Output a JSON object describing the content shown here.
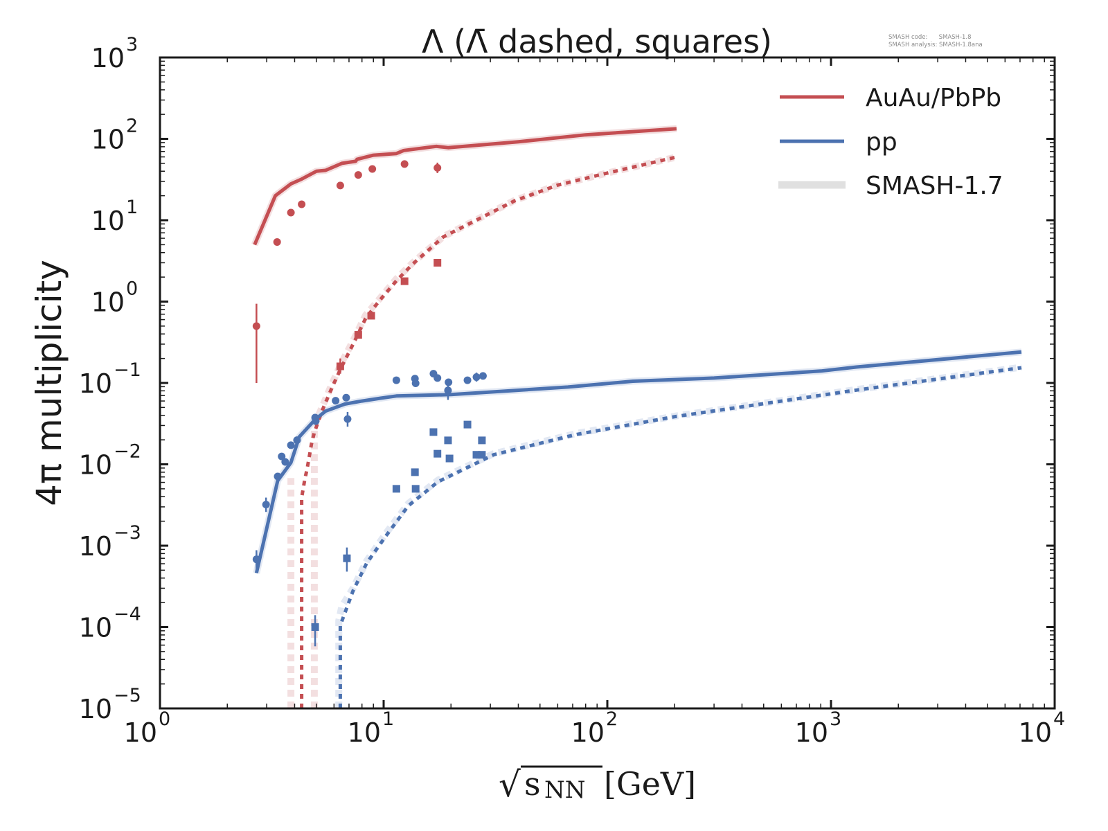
{
  "chart_data": {
    "type": "line",
    "title": "Λ (Λ̄ dashed, squares)",
    "meta_lines": [
      "SMASH code:      SMASH-1.8",
      "SMASH analysis: SMASH-1.8ana"
    ],
    "xlabel": "√sNN [GeV]",
    "xlabel_parts": {
      "sqrt": "√",
      "s": "s",
      "sub": "NN",
      "unit": "[GeV]"
    },
    "ylabel": "4π multiplicity",
    "xscale": "log",
    "yscale": "log",
    "xlim": [
      1,
      10000
    ],
    "ylim": [
      1e-05,
      1000
    ],
    "x_ticks": [
      {
        "base": "10",
        "exp": "0",
        "value": 1
      },
      {
        "base": "10",
        "exp": "1",
        "value": 10
      },
      {
        "base": "10",
        "exp": "2",
        "value": 100
      },
      {
        "base": "10",
        "exp": "3",
        "value": 1000
      },
      {
        "base": "10",
        "exp": "4",
        "value": 10000
      }
    ],
    "y_ticks": [
      {
        "base": "10",
        "exp": "3",
        "value": 1000
      },
      {
        "base": "10",
        "exp": "2",
        "value": 100
      },
      {
        "base": "10",
        "exp": "1",
        "value": 10
      },
      {
        "base": "10",
        "exp": "0",
        "value": 1
      },
      {
        "base": "10",
        "exp": "−1",
        "value": 0.1
      },
      {
        "base": "10",
        "exp": "−2",
        "value": 0.01
      },
      {
        "base": "10",
        "exp": "−3",
        "value": 0.001
      },
      {
        "base": "10",
        "exp": "−4",
        "value": 0.0001
      },
      {
        "base": "10",
        "exp": "−5",
        "value": 1e-05
      }
    ],
    "grid": false,
    "legend": {
      "placement": "top-right",
      "entries": [
        {
          "label": "AuAu/PbPb",
          "color": "#c44e52",
          "style": "solid"
        },
        {
          "label": "pp",
          "color": "#4c72b0",
          "style": "solid"
        },
        {
          "label": "SMASH-1.7",
          "color": "#e0e0e0",
          "style": "thick"
        }
      ]
    },
    "colors": {
      "red": "#c44e52",
      "blue": "#4c72b0",
      "red_old": "#f3dfe0",
      "blue_old": "#e2e8f3",
      "frame": "#1a1a1a"
    },
    "series": [
      {
        "name": "AuAu/PbPb Λ SMASH-1.8",
        "color": "#c44e52",
        "style": "solid",
        "x": [
          2.65,
          3.28,
          3.85,
          4.3,
          5.0,
          5.5,
          6.5,
          7.5,
          7.6,
          9.0,
          11.4,
          12.3,
          17.2,
          19.4,
          40,
          80,
          204
        ],
        "y": [
          5.0,
          20,
          28,
          32,
          40,
          41,
          50,
          53,
          56,
          63,
          66,
          72,
          81,
          78,
          92,
          112,
          133
        ]
      },
      {
        "name": "AuAu/PbPb Λ̄ SMASH-1.8",
        "color": "#c44e52",
        "style": "dashed",
        "x": [
          4.3,
          4.3,
          4.44,
          4.55,
          4.76,
          4.9,
          5.3,
          5.9,
          6.5,
          7.3,
          8.3,
          9.5,
          11.4,
          13.5,
          18.5,
          25,
          38.5,
          60,
          100,
          200
        ],
        "y": [
          1e-05,
          0.0039,
          0.0065,
          0.0088,
          0.018,
          0.0246,
          0.045,
          0.09,
          0.16,
          0.3,
          0.62,
          1.0,
          1.8,
          2.9,
          6.25,
          9.5,
          17.3,
          27,
          38,
          59
        ]
      },
      {
        "name": "pp Λ SMASH-1.8",
        "color": "#4c72b0",
        "style": "solid",
        "x": [
          2.7,
          3.36,
          3.85,
          4.2,
          4.94,
          5.5,
          6.7,
          8.0,
          9.7,
          11.4,
          20,
          66.6,
          130,
          300,
          900,
          1300,
          7100
        ],
        "y": [
          0.00046,
          0.0063,
          0.0105,
          0.0218,
          0.0355,
          0.045,
          0.055,
          0.06,
          0.065,
          0.0692,
          0.072,
          0.089,
          0.105,
          0.115,
          0.14,
          0.157,
          0.24
        ]
      },
      {
        "name": "pp Λ̄ SMASH-1.8",
        "color": "#4c72b0",
        "style": "dashed",
        "x": [
          6.4,
          6.4,
          7.3,
          8.4,
          10.2,
          12.9,
          17.5,
          31,
          66.6,
          73,
          200,
          1300,
          7100
        ],
        "y": [
          1e-05,
          0.000105,
          0.00028,
          0.00061,
          0.0013,
          0.0031,
          0.0061,
          0.0131,
          0.022,
          0.0233,
          0.0385,
          0.0817,
          0.154
        ]
      }
    ],
    "series_smash17": [
      {
        "name": "AuAu/PbPb Λ SMASH-1.7",
        "color": "#f3dfe0",
        "style": "solid",
        "x": [
          2.65,
          3.28,
          3.85,
          4.3,
          5.0,
          5.5,
          6.5,
          7.5,
          7.6,
          9.0,
          11.4,
          12.3,
          17.2,
          19.4,
          40,
          80,
          204
        ],
        "y": [
          5.0,
          20,
          28,
          32,
          40,
          41,
          50,
          53,
          56,
          63,
          66,
          72,
          81,
          78,
          92,
          112,
          133
        ]
      },
      {
        "name": "AuAu/PbPb Λ̄ SMASH-1.7 (a)",
        "color": "#f3dfe0",
        "style": "dashed",
        "x": [
          3.85,
          3.85
        ],
        "y": [
          1e-05,
          0.0068
        ]
      },
      {
        "name": "AuAu/PbPb Λ̄ SMASH-1.7 (b)",
        "color": "#f3dfe0",
        "style": "dashed",
        "x": [
          4.9,
          4.9,
          5.3,
          5.9,
          6.5,
          7.3,
          8.3,
          9.5,
          11.4,
          13.5,
          18.5,
          25,
          38.5,
          60,
          100,
          200
        ],
        "y": [
          1e-05,
          0.03,
          0.05,
          0.1,
          0.18,
          0.33,
          0.68,
          1.05,
          1.9,
          3.0,
          6.3,
          9.6,
          17.5,
          27,
          38,
          59
        ]
      },
      {
        "name": "pp Λ SMASH-1.7",
        "color": "#e2e8f3",
        "style": "solid",
        "x": [
          2.7,
          3.36,
          3.85,
          4.2,
          4.94,
          5.5,
          6.7,
          8.0,
          9.7,
          11.4,
          20,
          66.6,
          130,
          300,
          900,
          1300,
          7100
        ],
        "y": [
          0.00046,
          0.0063,
          0.0105,
          0.0218,
          0.0355,
          0.045,
          0.055,
          0.06,
          0.065,
          0.0692,
          0.072,
          0.089,
          0.105,
          0.115,
          0.14,
          0.157,
          0.24
        ]
      },
      {
        "name": "pp Λ̄ SMASH-1.7",
        "color": "#e2e8f3",
        "style": "dashed",
        "x": [
          6.3,
          6.3,
          6.5,
          7.3,
          8.4,
          10.2,
          12.9,
          17.5,
          31,
          73,
          200,
          1300,
          7100
        ],
        "y": [
          1e-05,
          0.00012,
          0.00018,
          0.0003,
          0.00065,
          0.0014,
          0.0033,
          0.0064,
          0.0135,
          0.024,
          0.039,
          0.083,
          0.156
        ]
      }
    ],
    "points": [
      {
        "name": "AuAu/PbPb Λ data",
        "marker": "circle",
        "color": "#c44e52",
        "x": [
          2.7,
          3.34,
          3.85,
          4.3,
          6.4,
          7.7,
          8.9,
          12.4,
          17.4
        ],
        "y": [
          0.5,
          5.4,
          12.4,
          15.7,
          26.7,
          36,
          42.6,
          49,
          44
        ],
        "yerr_low": [
          0.1,
          null,
          null,
          null,
          null,
          null,
          null,
          null,
          38
        ],
        "yerr_high": [
          0.94,
          null,
          null,
          null,
          null,
          null,
          null,
          null,
          51
        ]
      },
      {
        "name": "AuAu/PbPb Λ̄ data",
        "marker": "square",
        "color": "#c44e52",
        "x": [
          6.4,
          7.7,
          8.8,
          12.4,
          17.4
        ],
        "y": [
          0.16,
          0.39,
          0.67,
          1.78,
          3.0
        ],
        "yerr_low": [
          0.13,
          null,
          null,
          null,
          null
        ],
        "yerr_high": [
          0.2,
          null,
          null,
          null,
          null
        ]
      },
      {
        "name": "pp Λ data",
        "marker": "circle",
        "color": "#4c72b0",
        "x": [
          2.7,
          2.98,
          3.36,
          3.5,
          3.63,
          3.85,
          4.1,
          4.94,
          4.97,
          6.1,
          6.8,
          6.9,
          11.4,
          13.8,
          13.9,
          16.7,
          17.4,
          19.5,
          19.4,
          23.7,
          26.0,
          27.8
        ],
        "y": [
          0.00068,
          0.0032,
          0.0071,
          0.0125,
          0.0107,
          0.0172,
          0.0198,
          0.0375,
          0.034,
          0.0605,
          0.066,
          0.036,
          0.108,
          0.113,
          0.099,
          0.13,
          0.115,
          0.102,
          0.081,
          0.108,
          0.118,
          0.122
        ],
        "yerr_low": [
          0.00052,
          0.0026,
          null,
          null,
          null,
          null,
          null,
          null,
          null,
          null,
          null,
          0.029,
          null,
          null,
          null,
          null,
          null,
          null,
          0.062,
          null,
          0.104,
          null
        ],
        "yerr_high": [
          0.00088,
          0.0039,
          null,
          null,
          null,
          null,
          null,
          null,
          null,
          null,
          null,
          0.044,
          null,
          null,
          null,
          null,
          null,
          null,
          0.106,
          null,
          0.134,
          null
        ]
      },
      {
        "name": "pp Λ̄ data",
        "marker": "square",
        "color": "#4c72b0",
        "x": [
          4.94,
          6.85,
          11.4,
          13.8,
          13.9,
          16.7,
          17.4,
          19.4,
          19.7,
          23.7,
          26.0,
          27.5,
          27.5
        ],
        "y": [
          0.0001,
          0.0007,
          0.005,
          0.008,
          0.005,
          0.0249,
          0.0135,
          0.0197,
          0.0118,
          0.0308,
          0.0131,
          0.0131,
          0.0197
        ],
        "yerr_low": [
          5.8e-05,
          0.00048,
          null,
          null,
          null,
          null,
          null,
          null,
          null,
          null,
          null,
          null,
          null
        ],
        "yerr_high": [
          0.00014,
          0.00095,
          null,
          null,
          null,
          null,
          null,
          null,
          null,
          null,
          null,
          null,
          null
        ]
      }
    ]
  }
}
